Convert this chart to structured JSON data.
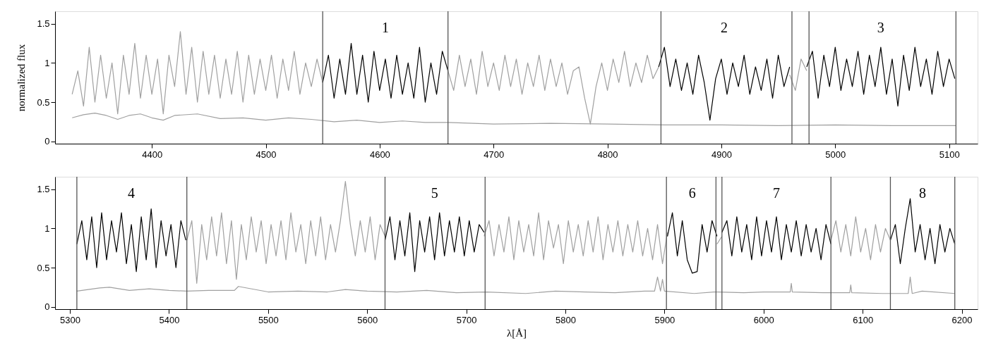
{
  "chart_data": [
    {
      "type": "line",
      "ylabel": "normalized flux",
      "xlim": [
        4315,
        5125
      ],
      "ylim": [
        -0.03,
        1.66
      ],
      "xticks": [
        4400,
        4500,
        4600,
        4700,
        4800,
        4900,
        5000,
        5100
      ],
      "yticks": [
        0,
        0.5,
        1,
        1.5
      ],
      "series": [
        {
          "color": "#a0a0a0",
          "x": [
            4330,
            4335,
            4340,
            4345,
            4350,
            4355,
            4360,
            4365,
            4370,
            4375,
            4380,
            4385,
            4390,
            4395,
            4400,
            4405,
            4410,
            4415,
            4420,
            4425,
            4430,
            4435,
            4440,
            4445,
            4450,
            4455,
            4460,
            4465,
            4470,
            4475,
            4480,
            4485,
            4490,
            4495,
            4500,
            4505,
            4510,
            4515,
            4520,
            4525,
            4530,
            4535,
            4540,
            4545,
            4550,
            4600,
            4660,
            4665,
            4670,
            4675,
            4680,
            4685,
            4690,
            4695,
            4700,
            4705,
            4710,
            4715,
            4720,
            4725,
            4730,
            4735,
            4740,
            4745,
            4750,
            4755,
            4760,
            4765,
            4770,
            4775,
            4780,
            4785,
            4790,
            4795,
            4800,
            4805,
            4810,
            4815,
            4820,
            4825,
            4830,
            4835,
            4840,
            4845,
            4900,
            4960,
            4965,
            4970,
            4975
          ],
          "values": [
            0.6,
            0.9,
            0.45,
            1.2,
            0.5,
            1.1,
            0.55,
            1.0,
            0.35,
            1.1,
            0.6,
            1.25,
            0.55,
            1.1,
            0.6,
            1.05,
            0.35,
            1.1,
            0.7,
            1.4,
            0.6,
            1.2,
            0.5,
            1.15,
            0.6,
            1.1,
            0.55,
            1.05,
            0.6,
            1.15,
            0.5,
            1.1,
            0.6,
            1.05,
            0.65,
            1.1,
            0.55,
            1.05,
            0.65,
            1.15,
            0.6,
            1.0,
            0.7,
            1.05,
            0.75,
            null,
            0.9,
            0.65,
            1.1,
            0.7,
            1.05,
            0.6,
            1.15,
            0.7,
            1.0,
            0.65,
            1.1,
            0.7,
            1.05,
            0.6,
            1.0,
            0.7,
            1.1,
            0.65,
            1.05,
            0.7,
            1.0,
            0.6,
            0.9,
            0.95,
            0.55,
            0.22,
            0.7,
            1.0,
            0.65,
            1.05,
            0.75,
            1.15,
            0.7,
            1.0,
            0.75,
            1.1,
            0.8,
            0.95,
            null,
            0.85,
            0.65,
            1.05,
            0.9
          ]
        },
        {
          "color": "#000000",
          "x": [
            4550,
            4555,
            4560,
            4565,
            4570,
            4575,
            4580,
            4585,
            4590,
            4595,
            4600,
            4605,
            4610,
            4615,
            4620,
            4625,
            4630,
            4635,
            4640,
            4645,
            4650,
            4655,
            4660,
            4750,
            4845,
            4850,
            4855,
            4860,
            4865,
            4870,
            4875,
            4880,
            4885,
            4890,
            4895,
            4900,
            4905,
            4910,
            4915,
            4920,
            4925,
            4930,
            4935,
            4940,
            4945,
            4950,
            4955,
            4960,
            4968,
            4975,
            4980,
            4985,
            4990,
            4995,
            5000,
            5005,
            5010,
            5015,
            5020,
            5025,
            5030,
            5035,
            5040,
            5045,
            5050,
            5055,
            5060,
            5065,
            5070,
            5075,
            5080,
            5085,
            5090,
            5095,
            5100,
            5105
          ],
          "values": [
            0.75,
            1.1,
            0.55,
            1.05,
            0.6,
            1.25,
            0.6,
            1.1,
            0.5,
            1.15,
            0.65,
            1.05,
            0.55,
            1.1,
            0.6,
            1.0,
            0.55,
            1.2,
            0.5,
            1.0,
            0.6,
            1.15,
            0.9,
            null,
            0.95,
            1.2,
            0.7,
            1.05,
            0.65,
            1.0,
            0.6,
            1.1,
            0.75,
            0.27,
            0.8,
            1.05,
            0.6,
            1.0,
            0.7,
            1.1,
            0.6,
            0.95,
            0.65,
            1.05,
            0.55,
            1.1,
            0.7,
            0.95,
            null,
            0.95,
            1.15,
            0.55,
            1.1,
            0.7,
            1.2,
            0.65,
            1.05,
            0.7,
            1.15,
            0.6,
            1.1,
            0.7,
            1.2,
            0.6,
            1.05,
            0.45,
            1.1,
            0.65,
            1.2,
            0.7,
            1.05,
            0.6,
            1.15,
            0.7,
            1.05,
            0.8
          ]
        },
        {
          "color": "#a0a0a0",
          "x": [
            4330,
            4340,
            4350,
            4360,
            4370,
            4380,
            4390,
            4400,
            4410,
            4420,
            4440,
            4460,
            4480,
            4500,
            4520,
            4540,
            4560,
            4580,
            4600,
            4620,
            4640,
            4660,
            4700,
            4750,
            4800,
            4850,
            4900,
            4950,
            5000,
            5050,
            5106
          ],
          "values": [
            0.3,
            0.34,
            0.36,
            0.33,
            0.28,
            0.33,
            0.35,
            0.3,
            0.27,
            0.33,
            0.35,
            0.29,
            0.3,
            0.27,
            0.3,
            0.28,
            0.25,
            0.27,
            0.24,
            0.26,
            0.24,
            0.24,
            0.22,
            0.23,
            0.22,
            0.21,
            0.21,
            0.2,
            0.21,
            0.2,
            0.2
          ]
        }
      ],
      "ref_lines": [
        {
          "axis": "x",
          "value": 4550,
          "color": "#555555"
        },
        {
          "axis": "x",
          "value": 4660,
          "color": "#555555"
        },
        {
          "axis": "x",
          "value": 4847,
          "color": "#555555"
        },
        {
          "axis": "x",
          "value": 4962,
          "color": "#555555"
        },
        {
          "axis": "x",
          "value": 4977,
          "color": "#555555"
        },
        {
          "axis": "x",
          "value": 5106,
          "color": "#555555"
        }
      ],
      "annotations": [
        "1",
        "2",
        "3"
      ]
    },
    {
      "type": "line",
      "xlabel": "λ[Å]",
      "xlim": [
        5285,
        6216
      ],
      "ylim": [
        -0.03,
        1.66
      ],
      "xticks": [
        5300,
        5400,
        5500,
        5600,
        5700,
        5800,
        5900,
        6000,
        6100,
        6200
      ],
      "yticks": [
        0,
        0.5,
        1,
        1.5
      ],
      "series": [
        {
          "color": "#a0a0a0",
          "x": [
            5418,
            5423,
            5428,
            5433,
            5438,
            5443,
            5448,
            5453,
            5458,
            5463,
            5468,
            5473,
            5478,
            5483,
            5488,
            5493,
            5498,
            5503,
            5508,
            5513,
            5518,
            5523,
            5528,
            5533,
            5538,
            5543,
            5548,
            5553,
            5558,
            5563,
            5568,
            5573,
            5578,
            5583,
            5588,
            5593,
            5598,
            5603,
            5608,
            5613,
            5618,
            5670,
            5718,
            5723,
            5728,
            5733,
            5738,
            5743,
            5748,
            5753,
            5758,
            5763,
            5768,
            5773,
            5778,
            5783,
            5788,
            5793,
            5798,
            5803,
            5808,
            5813,
            5818,
            5823,
            5828,
            5833,
            5838,
            5843,
            5848,
            5853,
            5858,
            5863,
            5868,
            5873,
            5878,
            5883,
            5888,
            5893,
            5898,
            5903,
            5930,
            5953,
            5958,
            6000,
            6068,
            6073,
            6078,
            6083,
            6088,
            6093,
            6098,
            6103,
            6108,
            6113,
            6118,
            6123,
            6128
          ],
          "values": [
            0.85,
            1.1,
            0.3,
            1.05,
            0.6,
            1.15,
            0.65,
            1.2,
            0.55,
            1.1,
            0.35,
            1.05,
            0.6,
            1.15,
            0.7,
            1.1,
            0.55,
            1.05,
            0.65,
            1.1,
            0.6,
            1.2,
            0.7,
            1.05,
            0.55,
            1.1,
            0.65,
            1.15,
            0.6,
            1.05,
            0.7,
            1.1,
            1.6,
            1.05,
            0.65,
            1.1,
            0.7,
            1.15,
            0.6,
            1.05,
            0.9,
            null,
            0.9,
            1.1,
            0.65,
            1.05,
            0.7,
            1.15,
            0.6,
            1.1,
            0.7,
            1.05,
            0.65,
            1.2,
            0.6,
            1.1,
            0.75,
            1.05,
            0.55,
            1.1,
            0.7,
            1.05,
            0.65,
            1.1,
            0.7,
            1.15,
            0.6,
            1.05,
            0.7,
            1.1,
            0.65,
            1.05,
            0.7,
            1.1,
            0.65,
            1.0,
            0.6,
            1.05,
            0.55,
            0.95,
            null,
            0.8,
            0.9,
            null,
            0.85,
            1.1,
            0.7,
            1.05,
            0.65,
            1.15,
            0.7,
            1.0,
            0.6,
            1.05,
            0.7,
            1.0,
            0.85
          ]
        },
        {
          "color": "#000000",
          "x": [
            5307,
            5312,
            5317,
            5322,
            5327,
            5332,
            5337,
            5342,
            5347,
            5352,
            5357,
            5362,
            5367,
            5372,
            5377,
            5382,
            5387,
            5392,
            5397,
            5402,
            5407,
            5412,
            5417,
            5500,
            5618,
            5623,
            5628,
            5633,
            5638,
            5643,
            5648,
            5653,
            5658,
            5663,
            5668,
            5673,
            5678,
            5683,
            5688,
            5693,
            5698,
            5703,
            5708,
            5713,
            5718,
            5800,
            5903,
            5908,
            5913,
            5918,
            5923,
            5928,
            5933,
            5938,
            5943,
            5948,
            5953,
            5955,
            5958,
            5963,
            5968,
            5973,
            5978,
            5983,
            5988,
            5993,
            5998,
            6003,
            6008,
            6013,
            6018,
            6023,
            6028,
            6033,
            6038,
            6043,
            6048,
            6053,
            6058,
            6063,
            6068,
            6100,
            6128,
            6133,
            6138,
            6143,
            6148,
            6153,
            6158,
            6163,
            6168,
            6173,
            6178,
            6183,
            6188,
            6193
          ],
          "values": [
            0.8,
            1.1,
            0.6,
            1.15,
            0.5,
            1.2,
            0.6,
            1.1,
            0.7,
            1.2,
            0.55,
            1.05,
            0.45,
            1.15,
            0.6,
            1.25,
            0.5,
            1.1,
            0.65,
            1.05,
            0.5,
            1.1,
            0.85,
            null,
            0.85,
            1.15,
            0.6,
            1.1,
            0.65,
            1.2,
            0.45,
            1.1,
            0.7,
            1.15,
            0.6,
            1.2,
            0.65,
            1.1,
            0.7,
            1.15,
            0.65,
            1.1,
            0.7,
            1.05,
            0.95,
            null,
            0.9,
            1.2,
            0.65,
            1.1,
            0.6,
            0.43,
            0.45,
            1.05,
            0.7,
            1.1,
            0.9,
            null,
            0.95,
            1.1,
            0.65,
            1.15,
            0.7,
            1.05,
            0.6,
            1.15,
            0.65,
            1.1,
            0.7,
            1.15,
            0.6,
            1.05,
            0.7,
            1.1,
            0.65,
            1.05,
            0.7,
            1.0,
            0.6,
            1.05,
            0.8,
            null,
            0.85,
            1.05,
            0.55,
            1.0,
            1.38,
            0.7,
            1.05,
            0.6,
            1.0,
            0.55,
            1.05,
            0.7,
            1.0,
            0.8
          ]
        },
        {
          "color": "#a0a0a0",
          "x": [
            5307,
            5330,
            5340,
            5360,
            5380,
            5400,
            5418,
            5440,
            5466,
            5470,
            5500,
            5530,
            5560,
            5578,
            5600,
            5630,
            5660,
            5690,
            5720,
            5760,
            5790,
            5820,
            5850,
            5880,
            5890,
            5893,
            5896,
            5898,
            5900,
            5930,
            5950,
            5980,
            6000,
            6027,
            6028,
            6029,
            6060,
            6087,
            6088,
            6089,
            6120,
            6146,
            6148,
            6150,
            6160,
            6193
          ],
          "values": [
            0.2,
            0.24,
            0.25,
            0.21,
            0.23,
            0.21,
            0.2,
            0.21,
            0.21,
            0.26,
            0.19,
            0.2,
            0.19,
            0.22,
            0.2,
            0.19,
            0.21,
            0.18,
            0.19,
            0.17,
            0.2,
            0.19,
            0.18,
            0.2,
            0.2,
            0.38,
            0.2,
            0.35,
            0.2,
            0.17,
            0.19,
            0.18,
            0.19,
            0.19,
            0.3,
            0.19,
            0.18,
            0.18,
            0.28,
            0.18,
            0.17,
            0.17,
            0.38,
            0.17,
            0.2,
            0.17
          ]
        }
      ],
      "ref_lines": [
        {
          "axis": "x",
          "value": 5307,
          "color": "#555555"
        },
        {
          "axis": "x",
          "value": 5418,
          "color": "#555555"
        },
        {
          "axis": "x",
          "value": 5618,
          "color": "#555555"
        },
        {
          "axis": "x",
          "value": 5719,
          "color": "#555555"
        },
        {
          "axis": "x",
          "value": 5902,
          "color": "#555555"
        },
        {
          "axis": "x",
          "value": 5952,
          "color": "#555555"
        },
        {
          "axis": "x",
          "value": 5958,
          "color": "#555555"
        },
        {
          "axis": "x",
          "value": 6068,
          "color": "#555555"
        },
        {
          "axis": "x",
          "value": 6128,
          "color": "#555555"
        },
        {
          "axis": "x",
          "value": 6193,
          "color": "#555555"
        }
      ],
      "annotations": [
        "4",
        "5",
        "6",
        "7",
        "8"
      ]
    }
  ]
}
